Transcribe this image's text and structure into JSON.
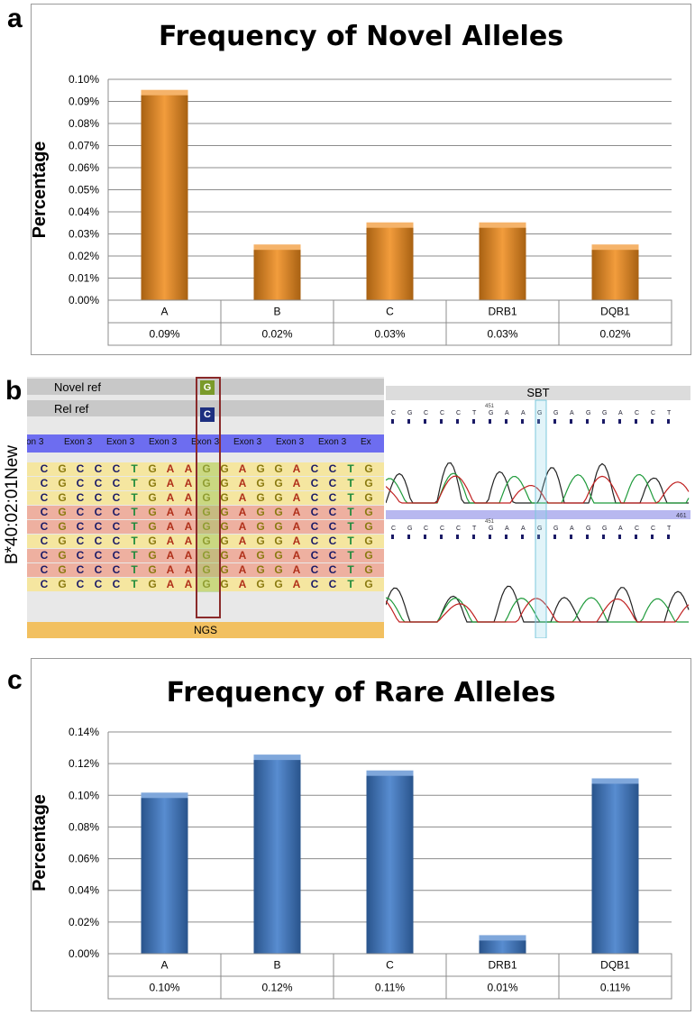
{
  "panels": {
    "a": "a",
    "b": "b",
    "c": "c"
  },
  "chart_data": [
    {
      "type": "bar",
      "title": "Frequency of Novel Alleles",
      "xlabel": "",
      "ylabel": "Percentage",
      "categories": [
        "A",
        "B",
        "C",
        "DRB1",
        "DQB1"
      ],
      "values": [
        0.094,
        0.024,
        0.034,
        0.034,
        0.024
      ],
      "table_values": [
        "0.09%",
        "0.02%",
        "0.03%",
        "0.03%",
        "0.02%"
      ],
      "yticks": [
        "0.00%",
        "0.01%",
        "0.02%",
        "0.03%",
        "0.04%",
        "0.05%",
        "0.06%",
        "0.07%",
        "0.08%",
        "0.09%",
        "0.10%"
      ],
      "ylim": [
        0,
        0.1
      ],
      "grid": true,
      "bar_color": "#f08a1a"
    },
    {
      "type": "bar",
      "title": "Frequency of Rare Alleles",
      "xlabel": "",
      "ylabel": "Percentage",
      "categories": [
        "A",
        "B",
        "C",
        "DRB1",
        "DQB1"
      ],
      "values": [
        0.1,
        0.124,
        0.114,
        0.01,
        0.109
      ],
      "table_values": [
        "0.10%",
        "0.12%",
        "0.11%",
        "0.01%",
        "0.11%"
      ],
      "yticks": [
        "0.00%",
        "0.02%",
        "0.04%",
        "0.06%",
        "0.08%",
        "0.10%",
        "0.12%",
        "0.14%"
      ],
      "ylim": [
        0,
        0.14
      ],
      "grid": true,
      "bar_color": "#3a78c8"
    }
  ],
  "sequence_panel": {
    "sample_label": "B*40:02:01New",
    "novel_ref_label": "Novel  ref",
    "novel_ref_base": "G",
    "rel_ref_label": "Rel  ref",
    "rel_ref_base": "C",
    "exon_labels": [
      "xon 3",
      "Exon 3",
      "Exon 3",
      "Exon 3",
      "Exon 3",
      "Exon 3",
      "Exon 3",
      "Exon 3",
      "Ex"
    ],
    "bases": [
      "C",
      "G",
      "C",
      "C",
      "C",
      "T",
      "G",
      "A",
      "A",
      "G",
      "G",
      "A",
      "G",
      "G",
      "A",
      "C",
      "C",
      "T",
      "G"
    ],
    "ngs_label": "NGS",
    "sbt_label": "SBT",
    "sbt_bases": [
      "C",
      "G",
      "C",
      "C",
      "C",
      "T",
      "G",
      "A",
      "A",
      "G",
      "G",
      "A",
      "G",
      "G",
      "A",
      "C",
      "C",
      "T"
    ],
    "sbt_position": "451",
    "sbt_position_right": "461"
  }
}
